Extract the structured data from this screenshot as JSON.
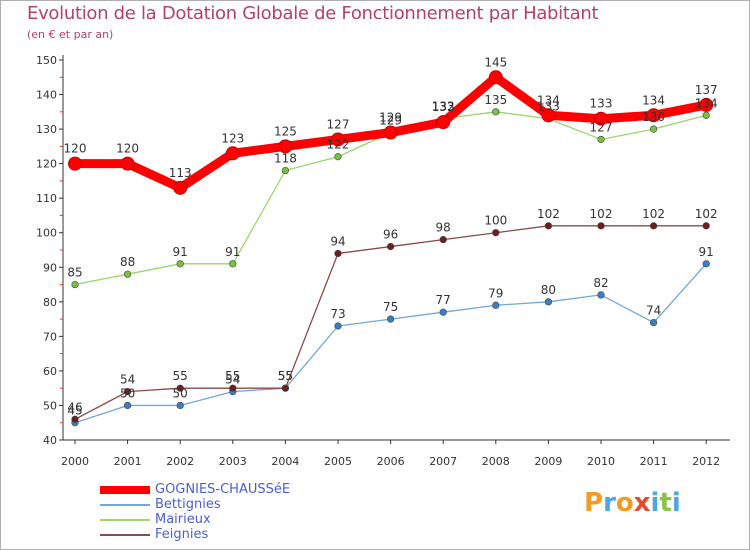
{
  "header": {
    "title": "Evolution de la Dotation Globale de Fonctionnement par Habitant",
    "subtitle": "(en € et par an)"
  },
  "logo": {
    "letters": [
      "P",
      "r",
      "o",
      "x",
      "i",
      "t",
      "i"
    ],
    "colors": [
      "#f39c1f",
      "#4aa8e0",
      "#f39c1f",
      "#e64b2e",
      "#4aa8e0",
      "#8bc34a",
      "#4aa8e0"
    ]
  },
  "chart_data": {
    "type": "line",
    "title": "Evolution de la Dotation Globale de Fonctionnement par Habitant",
    "subtitle": "(en € et par an)",
    "xlabel": "",
    "ylabel": "",
    "x": [
      "2000",
      "2001",
      "2002",
      "2003",
      "2004",
      "2005",
      "2006",
      "2007",
      "2008",
      "2009",
      "2010",
      "2011",
      "2012"
    ],
    "ylim": [
      40,
      150
    ],
    "yticks": [
      40,
      50,
      60,
      70,
      80,
      90,
      100,
      110,
      120,
      130,
      140,
      150
    ],
    "grid": false,
    "legend_position": "bottom-left",
    "series": [
      {
        "name": "GOGNIES-CHAUSSéE",
        "color": "#ff0000",
        "emphasis": true,
        "values": [
          120,
          120,
          113,
          123,
          125,
          127,
          129,
          132,
          145,
          134,
          133,
          134,
          137
        ]
      },
      {
        "name": "Bettignies",
        "color": "#6fa8d6",
        "point_color": "#3a7fc4",
        "emphasis": false,
        "values": [
          45,
          50,
          50,
          54,
          55,
          73,
          75,
          77,
          79,
          80,
          82,
          74,
          91
        ]
      },
      {
        "name": "Mairieux",
        "color": "#9ad66a",
        "point_color": "#76c043",
        "emphasis": false,
        "values": [
          85,
          88,
          91,
          91,
          118,
          122,
          129,
          133,
          135,
          133,
          127,
          130,
          134
        ]
      },
      {
        "name": "Feignies",
        "color": "#8b4a4a",
        "point_color": "#6b1f1f",
        "emphasis": false,
        "values": [
          46,
          54,
          55,
          55,
          55,
          94,
          96,
          98,
          100,
          102,
          102,
          102,
          102
        ]
      }
    ]
  }
}
